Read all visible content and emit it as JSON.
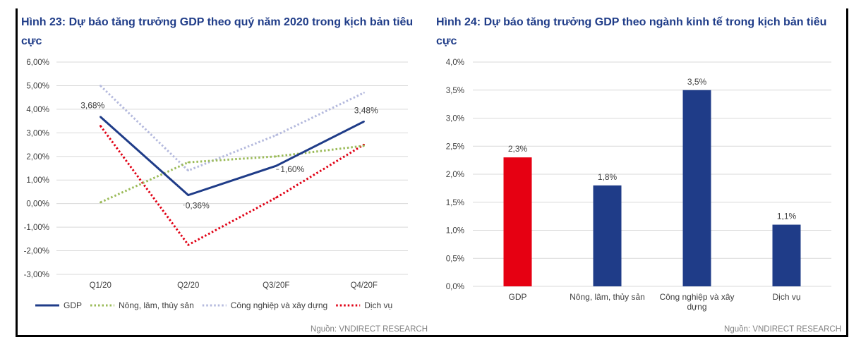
{
  "figures": {
    "left_title": "Hình 23: Dự báo tăng trưởng GDP theo quý năm 2020 trong kịch bản tiêu cực",
    "right_title": "Hình 24: Dự báo tăng trưởng GDP theo ngành kinh tế trong kịch bản tiêu cực",
    "left_source": "Nguồn: VNDIRECT RESEARCH",
    "right_source": "Nguồn: VNDIRECT RESEARCH"
  },
  "colors": {
    "gdp_line": "#1f3c88",
    "agri_line": "#9bbb59",
    "industry_line": "#b4b9dd",
    "services_line": "#e00014",
    "bar_gdp": "#e60012",
    "bar_other": "#1f3c88",
    "grid": "#d9d9d9"
  },
  "chart_data": [
    {
      "type": "line",
      "title": "Hình 23: Dự báo tăng trưởng GDP theo quý năm 2020 trong kịch bản tiêu cực",
      "categories": [
        "Q1/20",
        "Q2/20",
        "Q3/20F",
        "Q4/20F"
      ],
      "ylim": [
        -3.0,
        6.0
      ],
      "yticks": [
        6.0,
        5.0,
        4.0,
        3.0,
        2.0,
        1.0,
        0.0,
        -1.0,
        -2.0,
        -3.0
      ],
      "ytick_labels": [
        "6,00%",
        "5,00%",
        "4,00%",
        "3,00%",
        "2,00%",
        "1,00%",
        "0,00%",
        "-1,00%",
        "-2,00%",
        "-3,00%"
      ],
      "grid": true,
      "legend_position": "bottom",
      "series": [
        {
          "name": "GDP",
          "style": "solid",
          "color_key": "gdp_line",
          "values": [
            3.68,
            0.36,
            1.6,
            3.48
          ],
          "labels": [
            "3,68%",
            "0,36%",
            "1,60%",
            "3,48%"
          ]
        },
        {
          "name": "Nông, lâm, thủy sản",
          "style": "dotted",
          "color_key": "agri_line",
          "values": [
            0.05,
            1.75,
            2.0,
            2.45
          ]
        },
        {
          "name": "Công nghiệp và xây dựng",
          "style": "dotted",
          "color_key": "industry_line",
          "values": [
            5.0,
            1.4,
            2.9,
            4.7
          ]
        },
        {
          "name": "Dịch vụ",
          "style": "dotted",
          "color_key": "services_line",
          "values": [
            3.3,
            -1.75,
            0.25,
            2.5
          ]
        }
      ]
    },
    {
      "type": "bar",
      "title": "Hình 24: Dự báo tăng trưởng GDP theo ngành kinh tế trong kịch bản tiêu cực",
      "categories": [
        "GDP",
        "Nông, lâm, thủy sản",
        "Công nghiệp và xây dựng",
        "Dịch vụ"
      ],
      "category_lines": [
        [
          "GDP"
        ],
        [
          "Nông, lâm, thủy sản"
        ],
        [
          "Công nghiệp và xây",
          "dựng"
        ],
        [
          "Dịch vụ"
        ]
      ],
      "values": [
        2.3,
        1.8,
        3.5,
        1.1
      ],
      "value_labels": [
        "2,3%",
        "1,8%",
        "3,5%",
        "1,1%"
      ],
      "bar_color_keys": [
        "bar_gdp",
        "bar_other",
        "bar_other",
        "bar_other"
      ],
      "ylim": [
        0.0,
        4.0
      ],
      "yticks": [
        4.0,
        3.5,
        3.0,
        2.5,
        2.0,
        1.5,
        1.0,
        0.5,
        0.0
      ],
      "ytick_labels": [
        "4,0%",
        "3,5%",
        "3,0%",
        "2,5%",
        "2,0%",
        "1,5%",
        "1,0%",
        "0,5%",
        "0,0%"
      ],
      "grid": true,
      "legend_position": "none"
    }
  ]
}
